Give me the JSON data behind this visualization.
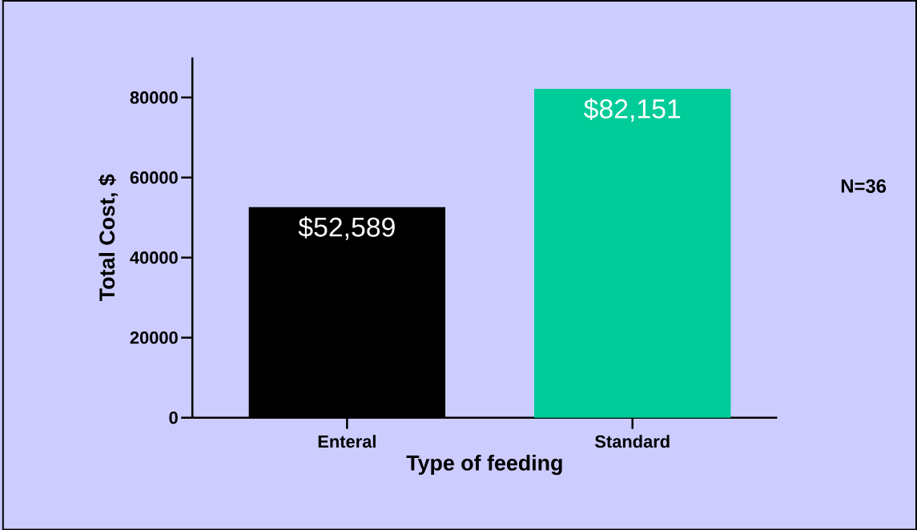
{
  "chart_data": {
    "type": "bar",
    "xlabel": "Type of feeding",
    "ylabel": "Total Cost, $",
    "categories": [
      "Enteral",
      "Standard"
    ],
    "values": [
      52589,
      82151
    ],
    "colors": [
      "#000000",
      "#00cc99"
    ],
    "value_labels": [
      "$52,589",
      "$82,151"
    ],
    "ylim": [
      0,
      90000
    ],
    "yticks": [
      0,
      20000,
      40000,
      60000,
      80000
    ],
    "annotations": [
      "N=36"
    ]
  }
}
